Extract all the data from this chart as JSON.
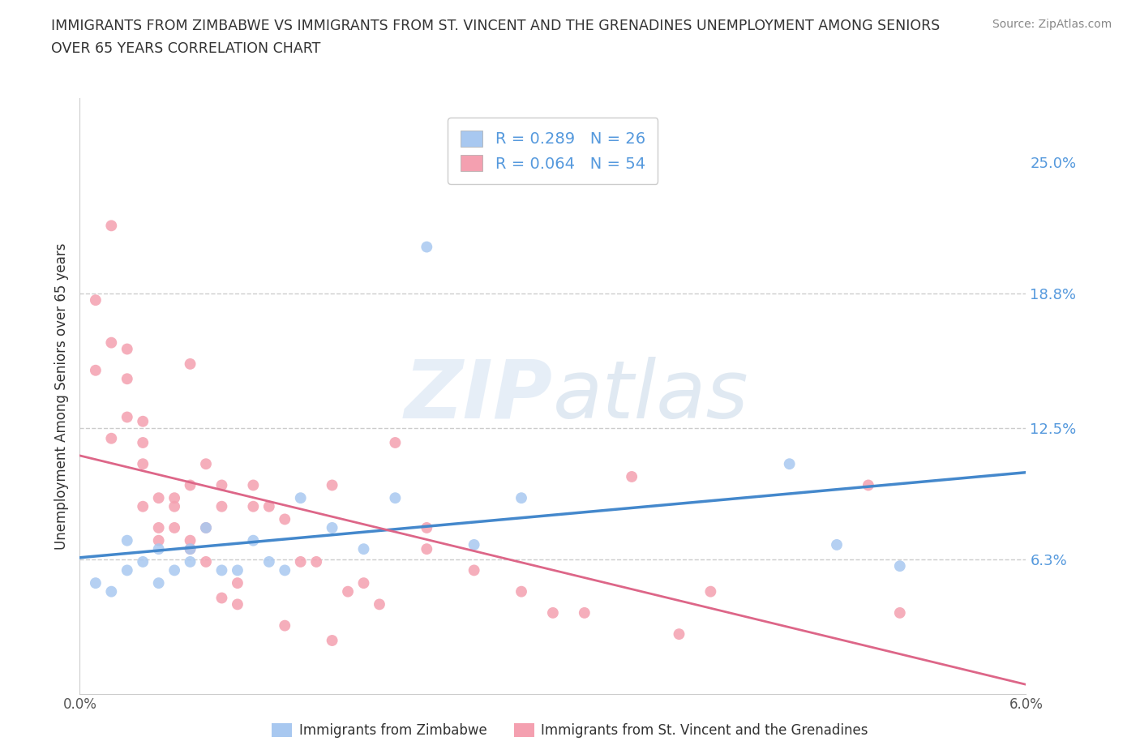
{
  "title_line1": "IMMIGRANTS FROM ZIMBABWE VS IMMIGRANTS FROM ST. VINCENT AND THE GRENADINES UNEMPLOYMENT AMONG SENIORS",
  "title_line2": "OVER 65 YEARS CORRELATION CHART",
  "source": "Source: ZipAtlas.com",
  "ylabel": "Unemployment Among Seniors over 65 years",
  "xlim": [
    0.0,
    0.06
  ],
  "ylim": [
    0.0,
    0.28
  ],
  "watermark_zip": "ZIP",
  "watermark_atlas": "atlas",
  "legend_r_zimbabwe": "0.289",
  "legend_n_zimbabwe": "26",
  "legend_r_stvincent": "0.064",
  "legend_n_stvincent": "54",
  "color_zimbabwe": "#a8c8f0",
  "color_stvincent": "#f4a0b0",
  "trendline_color_zimbabwe": "#4488cc",
  "trendline_color_stvincent": "#dd6688",
  "grid_color": "#cccccc",
  "ytick_positions": [
    0.0,
    0.063,
    0.125,
    0.188,
    0.25
  ],
  "ytick_labels": [
    "",
    "6.3%",
    "12.5%",
    "18.8%",
    "25.0%"
  ],
  "xtick_positions": [
    0.0,
    0.06
  ],
  "xtick_labels": [
    "0.0%",
    "6.0%"
  ],
  "blue_scatter_x": [
    0.001,
    0.002,
    0.003,
    0.003,
    0.004,
    0.005,
    0.005,
    0.006,
    0.007,
    0.007,
    0.008,
    0.009,
    0.01,
    0.011,
    0.012,
    0.013,
    0.014,
    0.016,
    0.018,
    0.02,
    0.022,
    0.025,
    0.045,
    0.048,
    0.052,
    0.028
  ],
  "blue_scatter_y": [
    0.052,
    0.048,
    0.058,
    0.072,
    0.062,
    0.052,
    0.068,
    0.058,
    0.068,
    0.062,
    0.078,
    0.058,
    0.058,
    0.072,
    0.062,
    0.058,
    0.092,
    0.078,
    0.068,
    0.092,
    0.21,
    0.07,
    0.108,
    0.07,
    0.06,
    0.092
  ],
  "pink_scatter_x": [
    0.001,
    0.001,
    0.002,
    0.002,
    0.002,
    0.003,
    0.003,
    0.003,
    0.004,
    0.004,
    0.004,
    0.004,
    0.005,
    0.005,
    0.005,
    0.006,
    0.006,
    0.006,
    0.007,
    0.007,
    0.007,
    0.007,
    0.008,
    0.008,
    0.008,
    0.009,
    0.009,
    0.009,
    0.01,
    0.01,
    0.011,
    0.011,
    0.012,
    0.013,
    0.013,
    0.014,
    0.015,
    0.016,
    0.016,
    0.017,
    0.018,
    0.019,
    0.02,
    0.022,
    0.022,
    0.025,
    0.028,
    0.03,
    0.032,
    0.035,
    0.038,
    0.04,
    0.05,
    0.052
  ],
  "pink_scatter_y": [
    0.185,
    0.152,
    0.165,
    0.12,
    0.22,
    0.148,
    0.162,
    0.13,
    0.088,
    0.108,
    0.118,
    0.128,
    0.072,
    0.092,
    0.078,
    0.092,
    0.088,
    0.078,
    0.098,
    0.072,
    0.068,
    0.155,
    0.108,
    0.078,
    0.062,
    0.098,
    0.088,
    0.045,
    0.042,
    0.052,
    0.098,
    0.088,
    0.088,
    0.082,
    0.032,
    0.062,
    0.062,
    0.025,
    0.098,
    0.048,
    0.052,
    0.042,
    0.118,
    0.068,
    0.078,
    0.058,
    0.048,
    0.038,
    0.038,
    0.102,
    0.028,
    0.048,
    0.098,
    0.038
  ]
}
